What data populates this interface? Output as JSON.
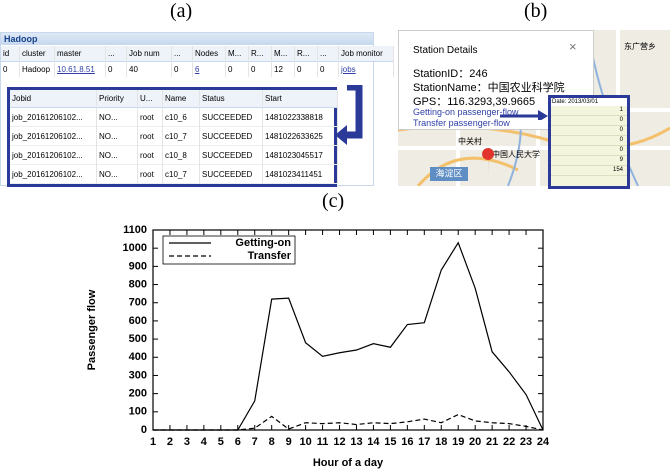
{
  "panel_a": {
    "label": "(a)",
    "title": "Hadoop",
    "header": [
      "id",
      "cluster",
      "master",
      "...",
      "Job num",
      "...",
      "Nodes",
      "M...",
      "R...",
      "M...",
      "R...",
      "...",
      "Job monitor"
    ],
    "row": [
      "0",
      "Hadoop",
      "10.61.8.51",
      "0",
      "40",
      "0",
      "6",
      "0",
      "0",
      "12",
      "0",
      "0",
      "jobs"
    ],
    "jobs": {
      "header": [
        "Jobid",
        "Priority",
        "U...",
        "Name",
        "Status",
        "Start"
      ],
      "rows": [
        [
          "job_20161206102...",
          "NO...",
          "root",
          "c10_6",
          "SUCCEEDED",
          "1481022338818"
        ],
        [
          "job_20161206102...",
          "NO...",
          "root",
          "c10_7",
          "SUCCEEDED",
          "1481022633625"
        ],
        [
          "job_20161206102...",
          "NO...",
          "root",
          "c10_8",
          "SUCCEEDED",
          "1481023045517"
        ],
        [
          "job_20161206102...",
          "NO...",
          "root",
          "c10_7",
          "SUCCEEDED",
          "1481023411451"
        ]
      ]
    }
  },
  "panel_b": {
    "label": "(b)",
    "popup_title": "Station Details",
    "station_id": "StationID：246",
    "station_name": "StationName：中国农业科学院",
    "gps": "GPS：116.3293,39.9665",
    "links": [
      "Getting-on passenger-flow",
      "Transfer passenger-flow"
    ],
    "map_labels": [
      "东广营乡",
      "中关村",
      "中国人民大学",
      "海淀区"
    ],
    "flow_table": {
      "date": "Date: 2013/03/01",
      "values": [
        1,
        0,
        0,
        0,
        0,
        9,
        154
      ]
    }
  },
  "chart_data": {
    "type": "line",
    "label": "(c)",
    "xlabel": "Hour of a day",
    "ylabel": "Passenger flow",
    "x": [
      1,
      2,
      3,
      4,
      5,
      6,
      7,
      8,
      9,
      10,
      11,
      12,
      13,
      14,
      15,
      16,
      17,
      18,
      19,
      20,
      21,
      22,
      23,
      24
    ],
    "xlim": [
      1,
      24
    ],
    "xticks": [
      1,
      2,
      3,
      4,
      5,
      6,
      7,
      8,
      9,
      10,
      11,
      12,
      13,
      14,
      15,
      16,
      17,
      18,
      19,
      20,
      21,
      22,
      23,
      24
    ],
    "ylim": [
      0,
      1100
    ],
    "yticks": [
      0,
      100,
      200,
      300,
      400,
      500,
      600,
      700,
      800,
      900,
      1000,
      1100
    ],
    "legend": "upper left",
    "series": [
      {
        "name": "Getting-on",
        "color": "#000000",
        "dash": "solid",
        "values": [
          0,
          0,
          0,
          0,
          0,
          0,
          160,
          720,
          725,
          480,
          405,
          425,
          440,
          475,
          455,
          580,
          590,
          880,
          1030,
          780,
          430,
          320,
          195,
          0
        ]
      },
      {
        "name": "Transfer",
        "color": "#000000",
        "dash": "dashed",
        "values": [
          0,
          0,
          0,
          0,
          0,
          0,
          10,
          75,
          5,
          40,
          35,
          40,
          30,
          40,
          35,
          45,
          60,
          40,
          85,
          50,
          40,
          35,
          20,
          0
        ]
      }
    ]
  }
}
